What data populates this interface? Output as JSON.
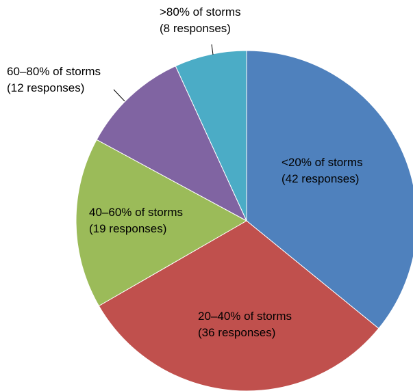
{
  "chart_data": {
    "type": "pie",
    "title": "",
    "start_angle_deg": 0,
    "direction": "clockwise",
    "legend": "none",
    "slices": [
      {
        "category": "<20% of storms",
        "value": 42,
        "label_line1": "<20% of storms",
        "label_line2": "(42 responses)",
        "color": "#4F81BD",
        "leader_line": false
      },
      {
        "category": "20–40% of storms",
        "value": 36,
        "label_line1": "20–40% of storms",
        "label_line2": "(36 responses)",
        "color": "#C0504D",
        "leader_line": false
      },
      {
        "category": "40–60% of storms",
        "value": 19,
        "label_line1": "40–60% of storms",
        "label_line2": "(19 responses)",
        "color": "#9BBB59",
        "leader_line": false
      },
      {
        "category": "60–80% of storms",
        "value": 12,
        "label_line1": "60–80% of storms",
        "label_line2": "(12 responses)",
        "color": "#8064A2",
        "leader_line": true
      },
      {
        "category": ">80% of storms",
        "value": 8,
        "label_line1": ">80% of storms",
        "label_line2": "(8 responses)",
        "color": "#4BACC6",
        "leader_line": true
      }
    ]
  }
}
